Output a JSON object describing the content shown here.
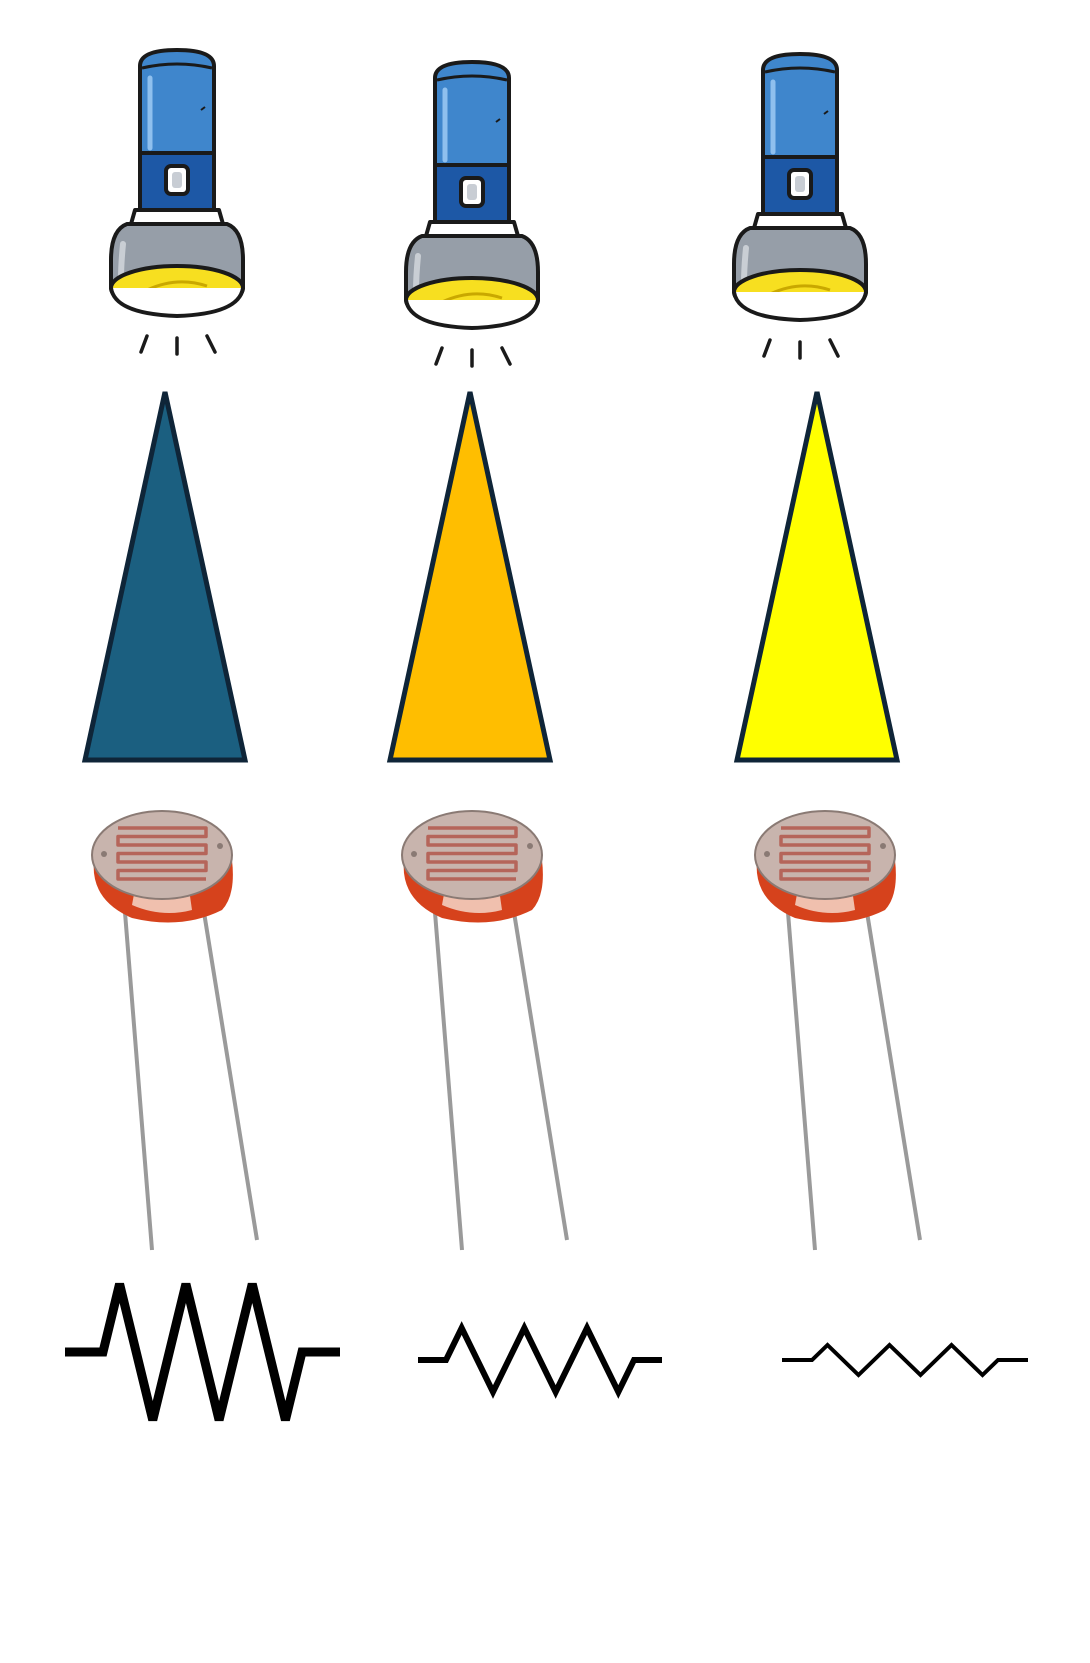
{
  "columns": [
    {
      "id": "dim",
      "light_level": "low",
      "beam_color": "#1b5f80",
      "resistance_level": "high"
    },
    {
      "id": "medium",
      "light_level": "medium",
      "beam_color": "#ffbe00",
      "resistance_level": "medium"
    },
    {
      "id": "bright",
      "light_level": "high",
      "beam_color": "#ffff00",
      "resistance_level": "low"
    }
  ],
  "colors": {
    "flashlight_body": "#3f86cc",
    "flashlight_band": "#1d58a6",
    "flashlight_head": "#969ea8",
    "flashlight_lens": "#f7df20",
    "outline": "#1a1a1a",
    "beam_outline": "#0f2538",
    "ldr_face": "#c8b4ad",
    "ldr_track": "#b5655a",
    "ldr_rim": "#d6421c",
    "ldr_lead": "#9a9a9a",
    "resistor_stroke": "#000000"
  },
  "icons": {
    "flashlight": "flashlight-icon",
    "light_beam": "light-beam-triangle",
    "sensor": "photoresistor-icon",
    "resistor": "resistor-symbol"
  }
}
